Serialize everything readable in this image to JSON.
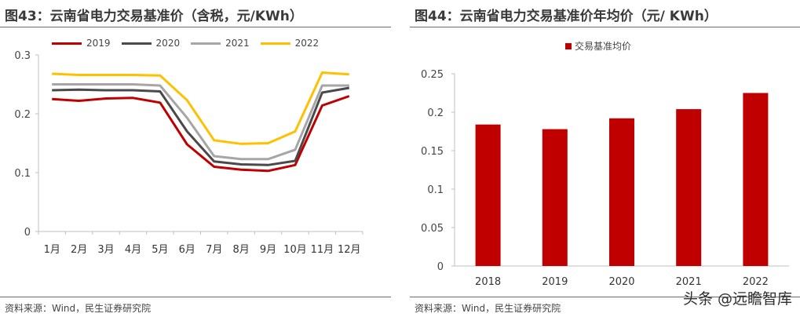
{
  "left": {
    "title": "图43：云南省电力交易基准价（含税，元/KWh）",
    "source": "资料来源：Wind，民生证券研究院"
  },
  "right": {
    "title": "图44：云南省电力交易基准价年均价（元/ KWh）",
    "source": "资料来源：Wind，民生证券研究院"
  },
  "watermark": "头条 @远瞻智库",
  "chart_data": [
    {
      "type": "line",
      "categories": [
        "1月",
        "2月",
        "3月",
        "4月",
        "5月",
        "6月",
        "7月",
        "8月",
        "9月",
        "10月",
        "11月",
        "12月"
      ],
      "ylim": [
        0,
        0.3
      ],
      "yticks": [
        0,
        0.1,
        0.2,
        0.3
      ],
      "ytick_labels": [
        "0",
        "0.1",
        "0.2",
        "0.3"
      ],
      "grid": false,
      "legend_position": "top",
      "series": [
        {
          "name": "2019",
          "color": "#c00000",
          "values": [
            0.225,
            0.222,
            0.226,
            0.227,
            0.219,
            0.148,
            0.11,
            0.105,
            0.103,
            0.113,
            0.214,
            0.23
          ]
        },
        {
          "name": "2020",
          "color": "#4a4a4a",
          "values": [
            0.24,
            0.241,
            0.24,
            0.24,
            0.238,
            0.17,
            0.119,
            0.114,
            0.113,
            0.12,
            0.236,
            0.244
          ]
        },
        {
          "name": "2021",
          "color": "#a6a6a6",
          "values": [
            0.25,
            0.25,
            0.25,
            0.25,
            0.248,
            0.193,
            0.128,
            0.123,
            0.123,
            0.139,
            0.248,
            0.248
          ]
        },
        {
          "name": "2022",
          "color": "#ffc000",
          "values": [
            0.268,
            0.266,
            0.266,
            0.266,
            0.265,
            0.223,
            0.155,
            0.149,
            0.15,
            0.17,
            0.27,
            0.267
          ]
        }
      ]
    },
    {
      "type": "bar",
      "categories": [
        "2018",
        "2019",
        "2020",
        "2021",
        "2022"
      ],
      "ylim": [
        0,
        0.25
      ],
      "yticks": [
        0,
        0.05,
        0.1,
        0.15,
        0.2,
        0.25
      ],
      "ytick_labels": [
        "0",
        "0.05",
        "0.1",
        "0.15",
        "0.2",
        "0.25"
      ],
      "grid": false,
      "legend_position": "top",
      "series": [
        {
          "name": "交易基准均价",
          "color": "#c00000",
          "values": [
            0.184,
            0.178,
            0.192,
            0.204,
            0.225
          ]
        }
      ]
    }
  ]
}
